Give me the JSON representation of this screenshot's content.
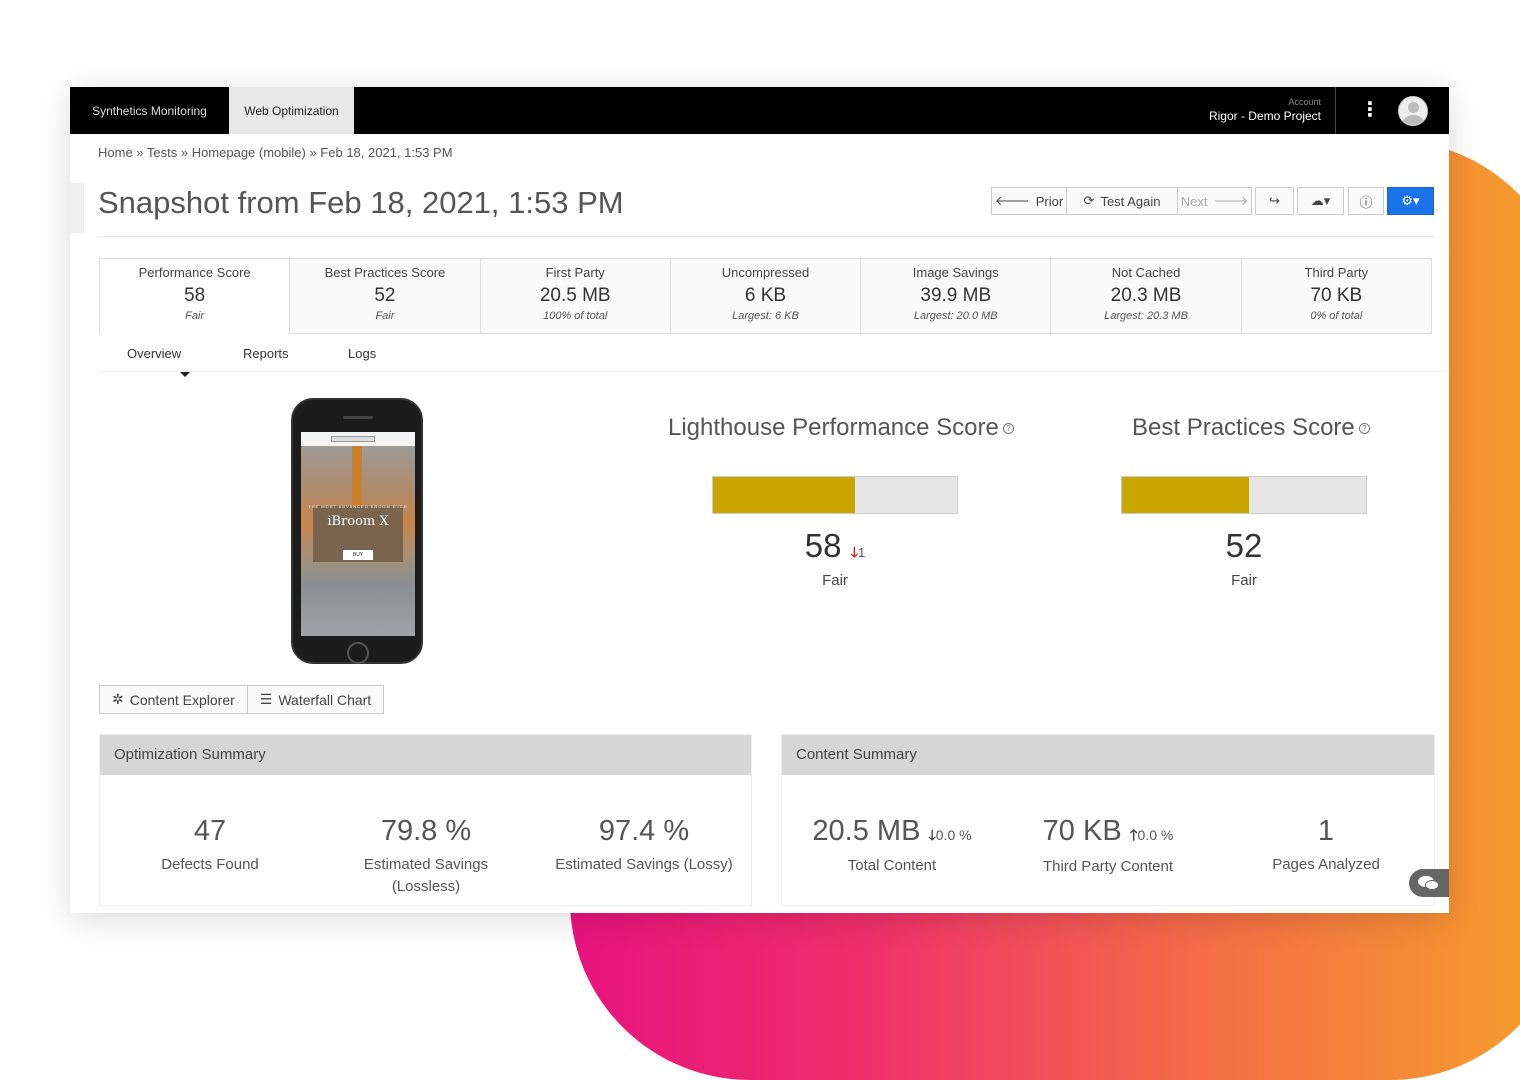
{
  "topbar": {
    "tabs": [
      {
        "label": "Synthetics Monitoring"
      },
      {
        "label": "Web Optimization"
      }
    ],
    "account_label": "Account",
    "account_name": "Rigor - Demo Project"
  },
  "breadcrumb": "Home » Tests » Homepage (mobile) » Feb 18, 2021, 1:53 PM",
  "page_title": "Snapshot from Feb 18, 2021, 1:53 PM",
  "toolbar": {
    "prior_label": "Prior",
    "test_again_label": "Test Again",
    "next_label": "Next"
  },
  "metrics": [
    {
      "label": "Performance Score",
      "value": "58",
      "sub": "Fair"
    },
    {
      "label": "Best Practices Score",
      "value": "52",
      "sub": "Fair"
    },
    {
      "label": "First Party",
      "value": "20.5 MB",
      "sub": "100% of total"
    },
    {
      "label": "Uncompressed",
      "value": "6 KB",
      "sub": "Largest: 6 KB"
    },
    {
      "label": "Image Savings",
      "value": "39.9 MB",
      "sub": "Largest: 20.0 MB"
    },
    {
      "label": "Not Cached",
      "value": "20.3 MB",
      "sub": "Largest: 20.3 MB"
    },
    {
      "label": "Third Party",
      "value": "70 KB",
      "sub": "0% of total"
    }
  ],
  "subnav": [
    "Overview",
    "Reports",
    "Logs"
  ],
  "phone_screen": {
    "title": "iBroom X",
    "subtitle": "THE MOST ADVANCED BROOM EVER",
    "buy": "BUY"
  },
  "view_buttons": {
    "content_explorer": "Content Explorer",
    "waterfall": "Waterfall Chart"
  },
  "lighthouse": {
    "title": "Lighthouse Performance Score",
    "score": "58",
    "delta": "1",
    "rating": "Fair",
    "fill": 0.58
  },
  "best_practices": {
    "title": "Best Practices Score",
    "score": "52",
    "rating": "Fair",
    "fill": 0.52
  },
  "optimization_summary": {
    "title": "Optimization Summary",
    "stats": [
      {
        "value": "47",
        "label": "Defects Found"
      },
      {
        "value": "79.8 %",
        "label": "Estimated Savings (Lossless)"
      },
      {
        "value": "97.4 %",
        "label": "Estimated Savings (Lossy)"
      }
    ]
  },
  "content_summary": {
    "title": "Content Summary",
    "stats": [
      {
        "value": "20.5 MB",
        "change": "0.0 %",
        "label": "Total Content"
      },
      {
        "value": "70 KB",
        "change": "0.0 %",
        "label": "Third Party Content"
      },
      {
        "value": "1",
        "label": "Pages Analyzed"
      }
    ]
  },
  "colors": {
    "accent": "#1a73e8",
    "score_fill": "#c9a700",
    "down": "#d0201a"
  }
}
